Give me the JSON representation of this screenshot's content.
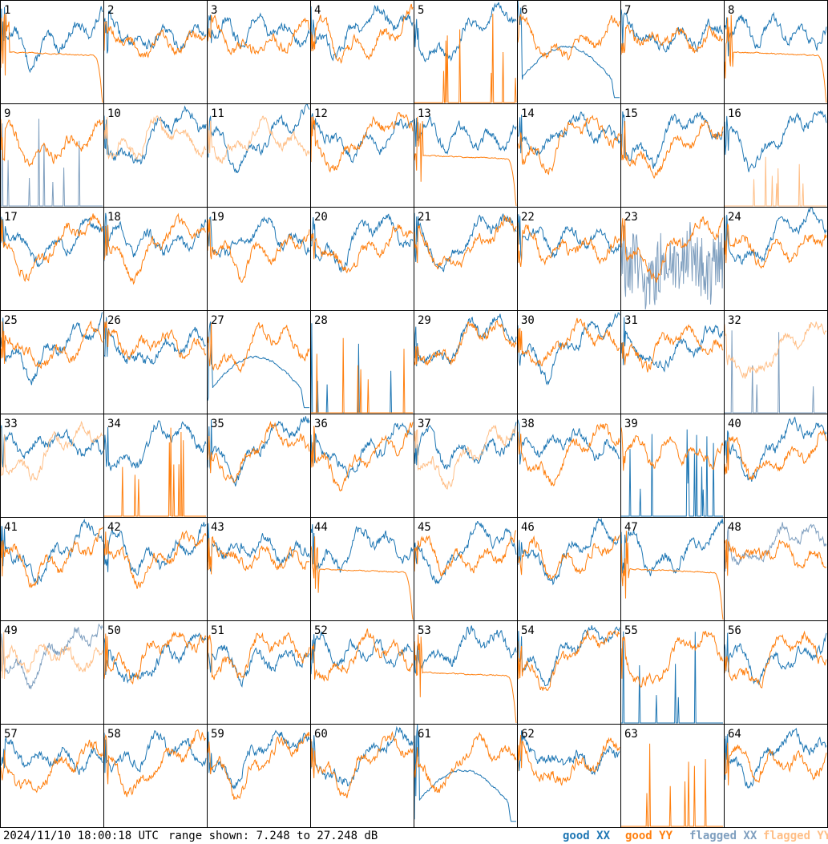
{
  "chart_data": {
    "type": "line",
    "panel_count": 64,
    "grid": {
      "rows": 8,
      "cols": 8
    },
    "panel_labels": [
      "1",
      "2",
      "3",
      "4",
      "5",
      "6",
      "7",
      "8",
      "9",
      "10",
      "11",
      "12",
      "13",
      "14",
      "15",
      "16",
      "17",
      "18",
      "19",
      "20",
      "21",
      "22",
      "23",
      "24",
      "25",
      "26",
      "27",
      "28",
      "29",
      "30",
      "31",
      "32",
      "33",
      "34",
      "35",
      "36",
      "37",
      "38",
      "39",
      "40",
      "41",
      "42",
      "43",
      "44",
      "45",
      "46",
      "47",
      "48",
      "49",
      "50",
      "51",
      "52",
      "53",
      "54",
      "55",
      "56",
      "57",
      "58",
      "59",
      "60",
      "61",
      "62",
      "63",
      "64"
    ],
    "ylim": [
      7.248,
      27.248
    ],
    "yunit": "dB",
    "series": [
      {
        "name": "good XX",
        "color": "#1f77b4"
      },
      {
        "name": "good YY",
        "color": "#ff7f0e"
      },
      {
        "name": "flagged XX",
        "color": "#7f9fbf"
      },
      {
        "name": "flagged YY",
        "color": "#ffbf87"
      }
    ],
    "panel_status": {
      "5": {
        "xx": "good",
        "yy": "spikes"
      },
      "6": {
        "xx": "dip",
        "yy": "good"
      },
      "8": {
        "xx": "good",
        "yy": "flat-drop"
      },
      "1": {
        "xx": "good",
        "yy": "flat-drop"
      },
      "9": {
        "xx": "flagged-spikes",
        "yy": "good"
      },
      "10": {
        "xx": "good",
        "yy": "flagged"
      },
      "11": {
        "xx": "good",
        "yy": "flagged"
      },
      "13": {
        "xx": "good",
        "yy": "flat-drop"
      },
      "16": {
        "xx": "good",
        "yy": "flagged-spikes"
      },
      "23": {
        "xx": "flagged-noise",
        "yy": "good"
      },
      "27": {
        "xx": "dip",
        "yy": "good"
      },
      "28": {
        "xx": "spikes",
        "yy": "spikes"
      },
      "32": {
        "xx": "flagged-spikes",
        "yy": "flagged"
      },
      "33": {
        "xx": "good",
        "yy": "flagged"
      },
      "34": {
        "xx": "good",
        "yy": "spikes"
      },
      "37": {
        "xx": "good",
        "yy": "flagged"
      },
      "39": {
        "xx": "spikes",
        "yy": "good"
      },
      "44": {
        "xx": "good",
        "yy": "flat-drop"
      },
      "47": {
        "xx": "good",
        "yy": "flat-drop"
      },
      "48": {
        "xx": "flagged",
        "yy": "good"
      },
      "49": {
        "xx": "flagged",
        "yy": "flagged"
      },
      "53": {
        "xx": "good",
        "yy": "flat-drop"
      },
      "55": {
        "xx": "spikes",
        "yy": "good"
      },
      "61": {
        "xx": "dip",
        "yy": "good"
      },
      "63": {
        "xx": "none",
        "yy": "spikes"
      }
    }
  },
  "footer": {
    "timestamp": "2024/11/10 18:00:18 UTC",
    "range_text": "range shown: 7.248 to 27.248 dB",
    "legend": [
      "good XX",
      "good YY",
      "flagged XX",
      "flagged YY"
    ]
  }
}
